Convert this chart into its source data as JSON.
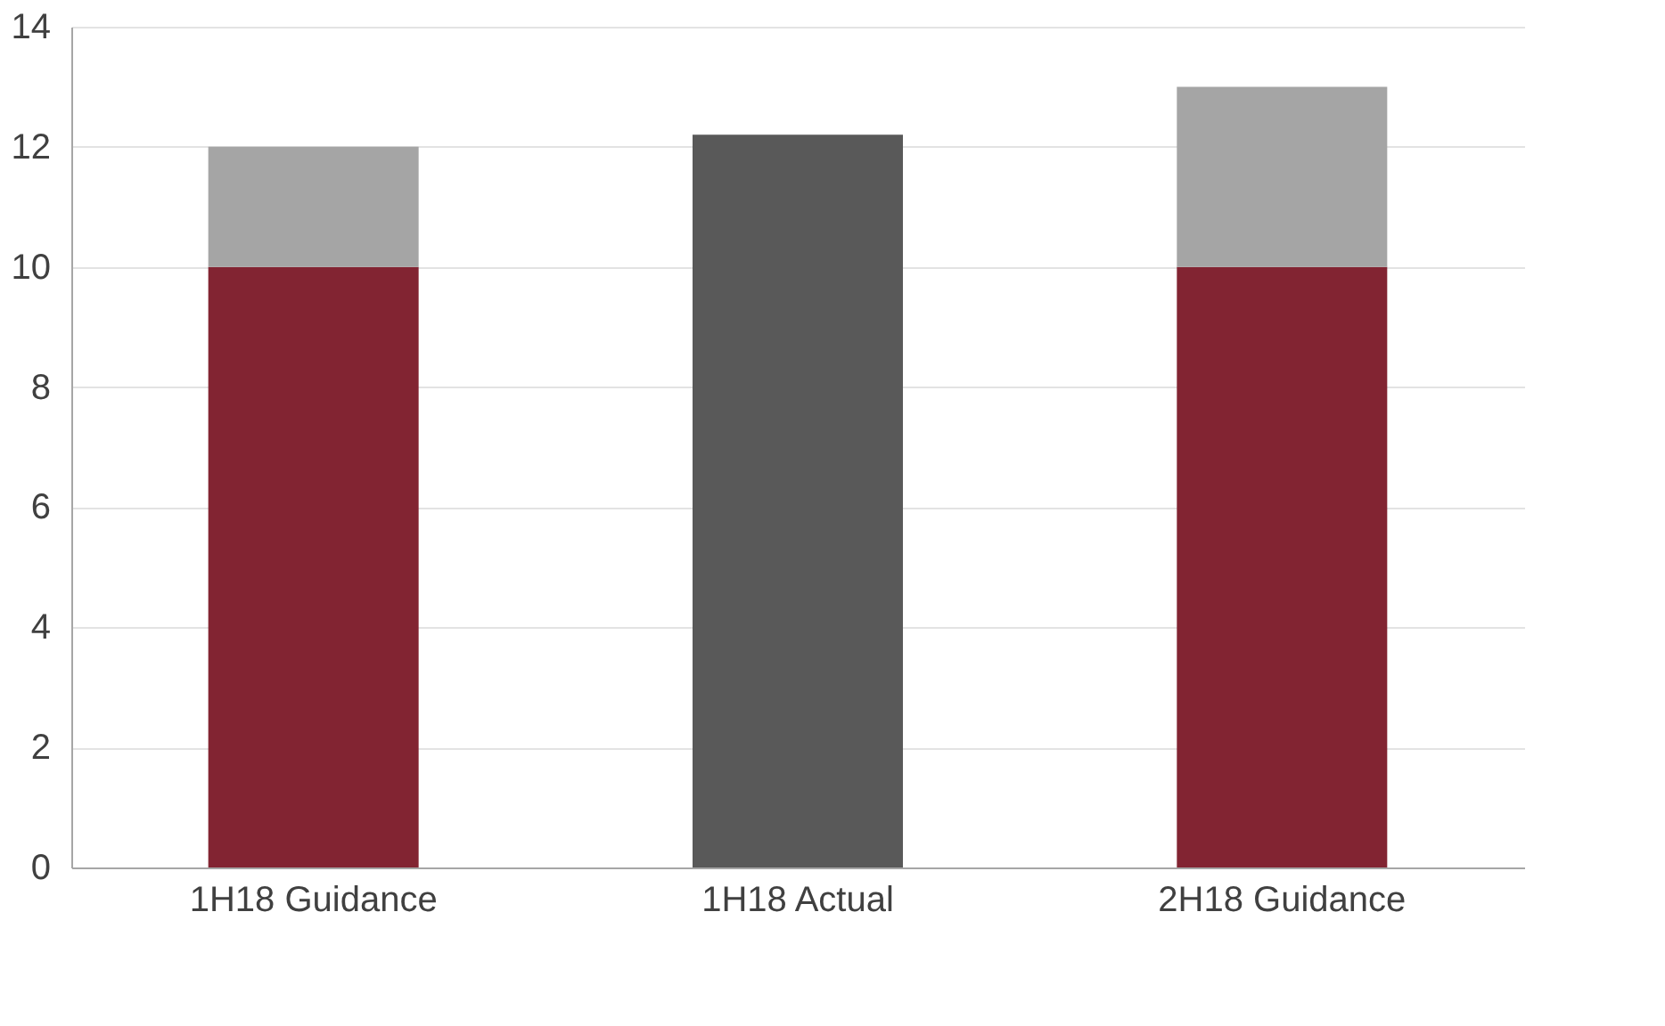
{
  "chart_data": {
    "type": "bar",
    "stacked": true,
    "categories": [
      "1H18 Guidance",
      "1H18 Actual",
      "2H18 Guidance"
    ],
    "series": [
      {
        "color": "#822432",
        "values": [
          10,
          null,
          10
        ]
      },
      {
        "color": "#a5a5a5",
        "values": [
          2,
          null,
          3
        ]
      },
      {
        "color": "#595959",
        "values": [
          null,
          12.2,
          null
        ]
      }
    ],
    "ylim": [
      0,
      14
    ],
    "yticks": [
      0,
      2,
      4,
      6,
      8,
      10,
      12,
      14
    ],
    "grid": "y"
  }
}
